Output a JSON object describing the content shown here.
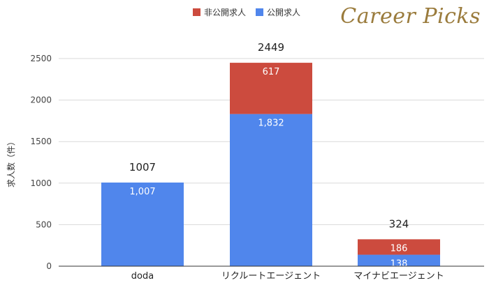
{
  "brand": {
    "watermark": "Career Picks",
    "color": "#9a7b3c"
  },
  "chart_data": {
    "type": "bar",
    "stacked": true,
    "title": "",
    "xlabel": "",
    "ylabel": "求人数（件）",
    "ylim": [
      0,
      2500
    ],
    "yticks": [
      0,
      500,
      1000,
      1500,
      2000,
      2500
    ],
    "grid": true,
    "legend_position": "top-center",
    "categories": [
      "doda",
      "リクルートエージェント",
      "マイナビエージェント"
    ],
    "series": [
      {
        "name": "公開求人",
        "color": "#5086ec",
        "values": [
          1007,
          1832,
          138
        ],
        "labels": [
          "1,007",
          "1,832",
          "138"
        ]
      },
      {
        "name": "非公開求人",
        "color": "#cc4b3e",
        "values": [
          0,
          617,
          186
        ],
        "labels": [
          "",
          "617",
          "186"
        ]
      }
    ],
    "totals": [
      "1007",
      "2449",
      "324"
    ],
    "legend_order": [
      1,
      0
    ]
  }
}
